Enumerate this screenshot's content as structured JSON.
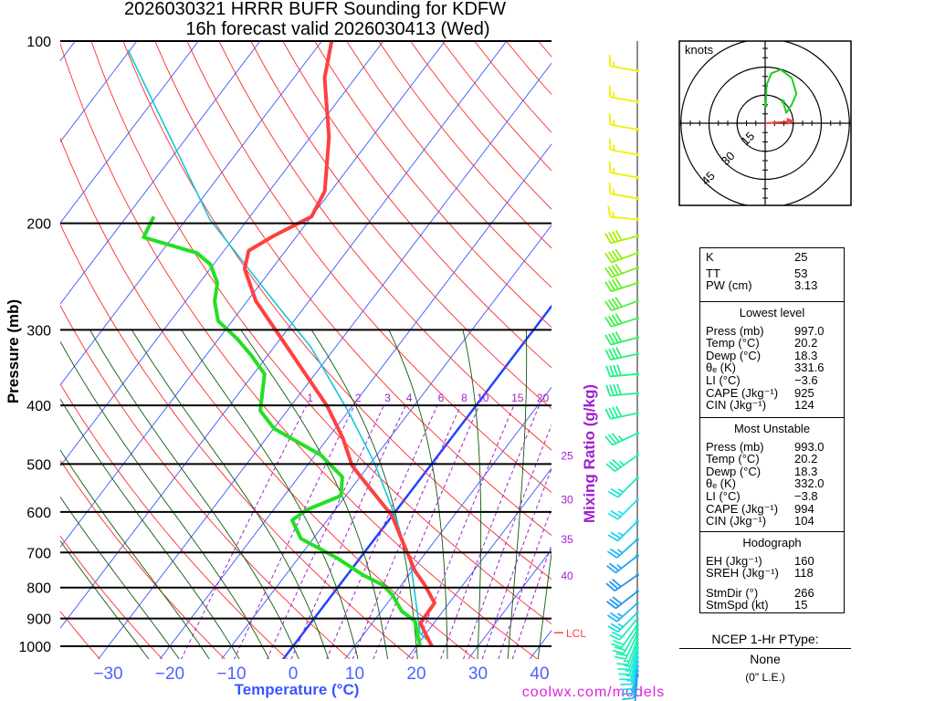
{
  "title": {
    "line1": "2026030321 HRRR BUFR Sounding for KDFW",
    "line2": "16h forecast valid 2026030413 (Wed)"
  },
  "credit": "coolwx.com/models",
  "colors": {
    "temperature": "#ff4040",
    "dewpoint": "#22e022",
    "parcel": "#10c8d8",
    "isotherm": "#3a55ff",
    "freezing": "#2244ff",
    "dry_adiabat": "#ff2a2a",
    "moist_adiabat": "#0a5a0a",
    "mixing_ratio": "#a020d0"
  },
  "chart_data": {
    "type": "skew-t",
    "title": "2026030321 HRRR BUFR Sounding for KDFW — 16h forecast valid 2026030413 (Wed)",
    "ylabel": "Pressure (mb)",
    "xlabel": "Temperature (°C)",
    "mixing_label": "Mixing Ratio (g/kg)",
    "ylim_mb": [
      1000,
      100
    ],
    "xlim_c_at_1000mb": [
      -38,
      42
    ],
    "pressure_ticks": [
      100,
      200,
      300,
      400,
      500,
      600,
      700,
      800,
      900,
      1000
    ],
    "temp_ticks": [
      {
        "value": -30,
        "label": "−30"
      },
      {
        "value": -20,
        "label": "−20"
      },
      {
        "value": -10,
        "label": "−10"
      },
      {
        "value": 0,
        "label": "0"
      },
      {
        "value": 10,
        "label": "10"
      },
      {
        "value": 20,
        "label": "20"
      },
      {
        "value": 30,
        "label": "30"
      },
      {
        "value": 40,
        "label": "40"
      }
    ],
    "mixing_ratios": [
      {
        "value": 1,
        "label": "1"
      },
      {
        "value": 2,
        "label": "2"
      },
      {
        "value": 3,
        "label": "3"
      },
      {
        "value": 4,
        "label": "4"
      },
      {
        "value": 6,
        "label": "6"
      },
      {
        "value": 8,
        "label": "8"
      },
      {
        "value": 10,
        "label": "10"
      },
      {
        "value": 15,
        "label": "15"
      },
      {
        "value": 20,
        "label": "20"
      },
      {
        "value": 25,
        "label": "25"
      },
      {
        "value": 30,
        "label": "30"
      },
      {
        "value": 35,
        "label": "35"
      },
      {
        "value": 40,
        "label": "40"
      }
    ],
    "lcl": {
      "label": "LCL",
      "pressure": 950
    },
    "series": [
      {
        "name": "temperature",
        "points": [
          [
            1000,
            22.5
          ],
          [
            916,
            17.8
          ],
          [
            848,
            17.6
          ],
          [
            792,
            13.8
          ],
          [
            751,
            10.5
          ],
          [
            664,
            4.3
          ],
          [
            609,
            0.0
          ],
          [
            525,
            -9.9
          ],
          [
            503,
            -12.7
          ],
          [
            453,
            -17.6
          ],
          [
            401,
            -24.1
          ],
          [
            314,
            -39.1
          ],
          [
            269,
            -48.6
          ],
          [
            238,
            -54.4
          ],
          [
            222,
            -56.0
          ],
          [
            210,
            -53.8
          ],
          [
            195,
            -50.0
          ],
          [
            177,
            -51.0
          ],
          [
            144,
            -57.0
          ],
          [
            115,
            -65.0
          ],
          [
            100,
            -68.4
          ]
        ]
      },
      {
        "name": "dewpoint",
        "points": [
          [
            1000,
            20.6
          ],
          [
            955,
            18.7
          ],
          [
            909,
            16.7
          ],
          [
            875,
            13.3
          ],
          [
            823,
            9.8
          ],
          [
            792,
            7.0
          ],
          [
            763,
            2.6
          ],
          [
            716,
            -3.6
          ],
          [
            664,
            -12.0
          ],
          [
            619,
            -15.7
          ],
          [
            595,
            -14.6
          ],
          [
            564,
            -10.8
          ],
          [
            525,
            -12.9
          ],
          [
            483,
            -19.1
          ],
          [
            437,
            -29.9
          ],
          [
            408,
            -34.4
          ],
          [
            355,
            -38.2
          ],
          [
            331,
            -42.6
          ],
          [
            310,
            -47.1
          ],
          [
            290,
            -52.3
          ],
          [
            269,
            -55.3
          ],
          [
            251,
            -57.1
          ],
          [
            234,
            -60.5
          ],
          [
            224,
            -64.1
          ],
          [
            211,
            -74.7
          ],
          [
            195,
            -75.6
          ]
        ]
      },
      {
        "name": "parcel",
        "points": [
          [
            1000,
            22.8
          ],
          [
            950,
            18.9
          ],
          [
            898,
            16.8
          ],
          [
            736,
            9.2
          ],
          [
            612,
            0.7
          ],
          [
            497,
            -9.5
          ],
          [
            413,
            -19.5
          ],
          [
            320,
            -34.1
          ],
          [
            269,
            -45.7
          ],
          [
            197,
            -66.2
          ],
          [
            103.5,
            -100.3
          ]
        ]
      }
    ],
    "wind_barbs": [
      {
        "p": 112,
        "dir": 280,
        "kt": 15,
        "color": "#eef000"
      },
      {
        "p": 126,
        "dir": 280,
        "kt": 15,
        "color": "#eef000"
      },
      {
        "p": 140,
        "dir": 280,
        "kt": 15,
        "color": "#eef000"
      },
      {
        "p": 154,
        "dir": 280,
        "kt": 15,
        "color": "#eef000"
      },
      {
        "p": 168,
        "dir": 280,
        "kt": 15,
        "color": "#eef000"
      },
      {
        "p": 182,
        "dir": 280,
        "kt": 15,
        "color": "#eef000"
      },
      {
        "p": 197,
        "dir": 275,
        "kt": 15,
        "color": "#eef000"
      },
      {
        "p": 210,
        "dir": 255,
        "kt": 40,
        "color": "#a8f000"
      },
      {
        "p": 224,
        "dir": 250,
        "kt": 40,
        "color": "#90f010"
      },
      {
        "p": 237,
        "dir": 250,
        "kt": 40,
        "color": "#78f020"
      },
      {
        "p": 251,
        "dir": 252,
        "kt": 40,
        "color": "#60f030"
      },
      {
        "p": 269,
        "dir": 250,
        "kt": 40,
        "color": "#50f040"
      },
      {
        "p": 287,
        "dir": 252,
        "kt": 40,
        "color": "#40f050"
      },
      {
        "p": 309,
        "dir": 255,
        "kt": 40,
        "color": "#30f068"
      },
      {
        "p": 329,
        "dir": 258,
        "kt": 40,
        "color": "#28f078"
      },
      {
        "p": 355,
        "dir": 265,
        "kt": 40,
        "color": "#22f088"
      },
      {
        "p": 382,
        "dir": 265,
        "kt": 40,
        "color": "#22f090"
      },
      {
        "p": 412,
        "dir": 258,
        "kt": 40,
        "color": "#22f098"
      },
      {
        "p": 445,
        "dir": 245,
        "kt": 35,
        "color": "#22f0a0"
      },
      {
        "p": 484,
        "dir": 235,
        "kt": 35,
        "color": "#22f0b0"
      },
      {
        "p": 527,
        "dir": 225,
        "kt": 25,
        "color": "#22e8d0"
      },
      {
        "p": 573,
        "dir": 225,
        "kt": 25,
        "color": "#22e0f0"
      },
      {
        "p": 622,
        "dir": 225,
        "kt": 25,
        "color": "#22d0f0"
      },
      {
        "p": 666,
        "dir": 228,
        "kt": 25,
        "color": "#22b8f0"
      },
      {
        "p": 709,
        "dir": 232,
        "kt": 25,
        "color": "#22a8f0"
      },
      {
        "p": 763,
        "dir": 235,
        "kt": 30,
        "color": "#2298f0"
      },
      {
        "p": 812,
        "dir": 232,
        "kt": 30,
        "color": "#2298f0"
      },
      {
        "p": 849,
        "dir": 228,
        "kt": 25,
        "color": "#22b8f0"
      },
      {
        "p": 880,
        "dir": 225,
        "kt": 25,
        "color": "#22d8e0"
      },
      {
        "p": 901,
        "dir": 220,
        "kt": 20,
        "color": "#22e8c0"
      },
      {
        "p": 923,
        "dir": 215,
        "kt": 20,
        "color": "#22f0b0"
      },
      {
        "p": 939,
        "dir": 210,
        "kt": 20,
        "color": "#22f0b0"
      },
      {
        "p": 955,
        "dir": 205,
        "kt": 20,
        "color": "#22f0b0"
      },
      {
        "p": 973,
        "dir": 200,
        "kt": 15,
        "color": "#22f0b8"
      },
      {
        "p": 990,
        "dir": 198,
        "kt": 15,
        "color": "#22f0c0"
      },
      {
        "p": 1007,
        "dir": 196,
        "kt": 15,
        "color": "#22f0c8"
      },
      {
        "p": 1025,
        "dir": 194,
        "kt": 15,
        "color": "#22e8d8"
      },
      {
        "p": 1043,
        "dir": 192,
        "kt": 15,
        "color": "#22e0e8"
      },
      {
        "p": 1061,
        "dir": 190,
        "kt": 10,
        "color": "#22d8f0"
      },
      {
        "p": 1080,
        "dir": 190,
        "kt": 10,
        "color": "#22c8f0"
      },
      {
        "p": 1099,
        "dir": 188,
        "kt": 10,
        "color": "#22b8f0"
      },
      {
        "p": 1117,
        "dir": 185,
        "kt": 10,
        "color": "#2298f0"
      }
    ]
  },
  "hodograph": {
    "units_label": "knots",
    "ring_labels": [
      "15",
      "30",
      "45"
    ],
    "rings_kt": [
      15,
      30,
      45
    ],
    "trace_uv_kt": [
      [
        0.3,
        9.5
      ],
      [
        0.8,
        20.5
      ],
      [
        3.3,
        26.7
      ],
      [
        8.3,
        28.7
      ],
      [
        14.2,
        24.2
      ],
      [
        16.7,
        15.8
      ],
      [
        14.2,
        10.0
      ],
      [
        11.3,
        5.5
      ],
      [
        9.5,
        11.7
      ]
    ],
    "storm_motion": {
      "dir": 266,
      "kt": 15
    }
  },
  "indices": [
    {
      "heading": null,
      "rows": [
        [
          "K",
          "25"
        ],
        [
          "TT",
          "53"
        ],
        [
          "PW (cm)",
          "3.13"
        ]
      ]
    },
    {
      "heading": "Lowest level",
      "rows": [
        [
          "Press (mb)",
          "997.0"
        ],
        [
          "Temp (°C)",
          "20.2"
        ],
        [
          "Dewp (°C)",
          "18.3"
        ],
        [
          "θₑ (K)",
          "331.6"
        ],
        [
          "LI (°C)",
          "−3.6"
        ],
        [
          "CAPE (Jkg⁻¹)",
          "925"
        ],
        [
          "CIN (Jkg⁻¹)",
          "124"
        ]
      ]
    },
    {
      "heading": "Most Unstable",
      "rows": [
        [
          "Press (mb)",
          "993.0"
        ],
        [
          "Temp (°C)",
          "20.2"
        ],
        [
          "Dewp (°C)",
          "18.3"
        ],
        [
          "θₑ (K)",
          "332.0"
        ],
        [
          "LI (°C)",
          "−3.8"
        ],
        [
          "CAPE (Jkg⁻¹)",
          "994"
        ],
        [
          "CIN (Jkg⁻¹)",
          "104"
        ]
      ]
    },
    {
      "heading": "Hodograph",
      "rows": [
        [
          "EH (Jkg⁻¹)",
          "160"
        ],
        [
          "SREH (Jkg⁻¹)",
          "118"
        ],
        null,
        [
          "StmDir (°)",
          "266"
        ],
        [
          "StmSpd (kt)",
          "15"
        ]
      ]
    }
  ],
  "ptype": {
    "heading": "NCEP 1-Hr PType:",
    "value": "None",
    "note": "(0\" L.E.)"
  }
}
